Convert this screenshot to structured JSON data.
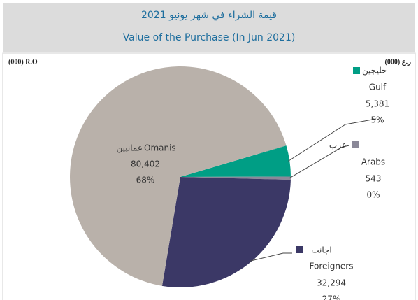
{
  "chart_data": {
    "type": "pie",
    "title": "قيمة الشراء في شهر يونيو 2021",
    "subtitle": "Value of the Purchase (In Jun 2021)",
    "unit_label_left": "(000) R.O",
    "unit_label_right": "(000) ر.ع",
    "categories": [
      "Gulf",
      "Arabs",
      "Foreigners",
      "Omanis"
    ],
    "categories_ar": [
      "خليجين",
      "عرب",
      "اجانب",
      "عمانيين"
    ],
    "values": [
      5381,
      543,
      32294,
      80402
    ],
    "value_labels": [
      "5,381",
      "543",
      "32,294",
      "80,402"
    ],
    "percents": [
      5,
      0,
      27,
      68
    ],
    "percent_labels": [
      "5%",
      "0%",
      "27%",
      "68%"
    ],
    "colors": [
      "#009e85",
      "#8a8898",
      "#3b3866",
      "#b9b1aa"
    ]
  }
}
